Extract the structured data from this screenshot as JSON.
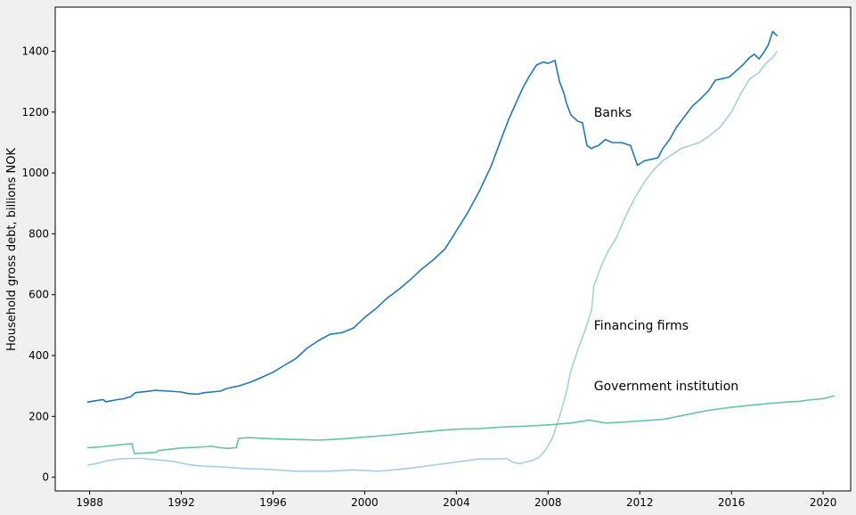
{
  "chart_data": {
    "type": "line",
    "title": "",
    "xlabel": "",
    "ylabel": "Household gross debt, billions NOK",
    "xlim": [
      1986.5,
      2021.2
    ],
    "ylim": [
      -45,
      1545
    ],
    "x_ticks": [
      1988,
      1992,
      1996,
      2000,
      2004,
      2008,
      2012,
      2016,
      2020
    ],
    "x_tick_labels": [
      "1988",
      "1992",
      "1996",
      "2000",
      "2004",
      "2008",
      "2012",
      "2016",
      "2020"
    ],
    "y_ticks": [
      0,
      200,
      400,
      600,
      800,
      1000,
      1200,
      1400
    ],
    "y_tick_labels": [
      "0",
      "200",
      "400",
      "600",
      "800",
      "1000",
      "1200",
      "1400"
    ],
    "grid": false,
    "legend": "none",
    "annotations": [
      {
        "text": "Banks",
        "x": 2010.0,
        "y": 1200
      },
      {
        "text": "Financing firms",
        "x": 2010.0,
        "y": 500
      },
      {
        "text": "Government institution",
        "x": 2010.0,
        "y": 300
      }
    ],
    "series": [
      {
        "color": "#1f78b4",
        "x": [
          1987.9,
          1988.3,
          1988.6,
          1988.7,
          1989.0,
          1989.2,
          1989.5,
          1989.8,
          1990.0,
          1990.5,
          1990.9,
          1991.0,
          1991.5,
          1992.0,
          1992.3,
          1992.7,
          1993.0,
          1993.3,
          1993.7,
          1994.0,
          1994.5,
          1995.0,
          1995.5,
          1996.0,
          1996.5,
          1997.0,
          1997.5,
          1998.0,
          1998.5,
          1999.0,
          1999.5,
          2000.0,
          2000.5,
          2001.0,
          2001.5,
          2002.0,
          2002.5,
          2003.0,
          2003.5,
          2004.0,
          2004.5,
          2005.0,
          2005.5,
          2005.8,
          2006.0,
          2006.3,
          2006.6,
          2006.9,
          2007.2,
          2007.5,
          2007.8,
          2008.0,
          2008.3,
          2008.5,
          2008.7,
          2008.8,
          2009.0,
          2009.3,
          2009.5,
          2009.7,
          2009.9,
          2010.0,
          2010.2,
          2010.5,
          2010.8,
          2011.2,
          2011.6,
          2011.9,
          2012.0,
          2012.2,
          2012.5,
          2012.8,
          2013.0,
          2013.3,
          2013.6,
          2014.0,
          2014.3,
          2014.6,
          2015.0,
          2015.3,
          2015.6,
          2015.9,
          2016.2,
          2016.5,
          2016.8,
          2017.0,
          2017.2,
          2017.4,
          2017.6,
          2017.8,
          2018.0
        ],
        "y": [
          247,
          252,
          255,
          248,
          252,
          255,
          258,
          265,
          278,
          282,
          286,
          285,
          283,
          280,
          275,
          273,
          278,
          280,
          283,
          292,
          300,
          312,
          328,
          345,
          368,
          390,
          425,
          450,
          470,
          475,
          490,
          525,
          555,
          590,
          618,
          650,
          685,
          715,
          750,
          810,
          870,
          940,
          1020,
          1080,
          1120,
          1180,
          1230,
          1280,
          1320,
          1355,
          1365,
          1360,
          1370,
          1300,
          1260,
          1230,
          1190,
          1170,
          1165,
          1090,
          1080,
          1085,
          1090,
          1110,
          1100,
          1100,
          1090,
          1025,
          1030,
          1040,
          1045,
          1050,
          1080,
          1110,
          1150,
          1190,
          1220,
          1240,
          1270,
          1305,
          1310,
          1315,
          1335,
          1355,
          1380,
          1390,
          1375,
          1395,
          1420,
          1465,
          1450
        ]
      },
      {
        "color": "#a6cee3",
        "x": [
          1987.9,
          1988.3,
          1988.8,
          1989.3,
          1989.8,
          1990.3,
          1990.8,
          1991.3,
          1991.8,
          1992.3,
          1992.7,
          1993.0,
          1993.5,
          1994.0,
          1994.5,
          1995.0,
          1995.5,
          1996.0,
          1996.5,
          1997.0,
          1997.5,
          1998.0,
          1998.5,
          1999.0,
          1999.5,
          2000.0,
          2000.5,
          2001.0,
          2001.5,
          2002.0,
          2002.5,
          2003.0,
          2003.5,
          2004.0,
          2004.5,
          2005.0,
          2005.5,
          2005.8,
          2006.0,
          2006.2,
          2006.5,
          2006.8,
          2007.0,
          2007.3,
          2007.6,
          2007.9,
          2008.2,
          2008.5,
          2008.8,
          2009.0,
          2009.3,
          2009.6,
          2009.9,
          2010.0,
          2010.3,
          2010.6,
          2011.0,
          2011.4,
          2011.8,
          2012.2,
          2012.6,
          2013.0,
          2013.4,
          2013.8,
          2014.2,
          2014.6,
          2015.0,
          2015.5,
          2016.0,
          2016.4,
          2016.8,
          2017.2,
          2017.5,
          2017.8,
          2018.0
        ],
        "y": [
          40,
          45,
          55,
          60,
          62,
          62,
          58,
          55,
          50,
          42,
          38,
          36,
          35,
          33,
          30,
          28,
          27,
          25,
          22,
          20,
          20,
          20,
          20,
          22,
          24,
          22,
          20,
          22,
          26,
          30,
          35,
          40,
          45,
          50,
          55,
          60,
          60,
          60,
          60,
          62,
          48,
          45,
          50,
          55,
          65,
          90,
          130,
          200,
          280,
          350,
          420,
          480,
          550,
          630,
          690,
          740,
          790,
          860,
          920,
          970,
          1010,
          1040,
          1060,
          1080,
          1090,
          1100,
          1120,
          1150,
          1200,
          1260,
          1310,
          1330,
          1360,
          1380,
          1400
        ]
      },
      {
        "color": "#66c2a5",
        "x": [
          1987.9,
          1988.5,
          1989.0,
          1989.5,
          1989.85,
          1989.95,
          1990.5,
          1990.9,
          1991.0,
          1991.5,
          1992.0,
          1992.5,
          1993.0,
          1993.3,
          1993.7,
          1994.0,
          1994.4,
          1994.5,
          1995.0,
          1995.5,
          1996.0,
          1996.5,
          1997.0,
          1997.5,
          1998.0,
          1998.5,
          1999.0,
          1999.5,
          2000.0,
          2001.0,
          2002.0,
          2003.0,
          2004.0,
          2005.0,
          2006.0,
          2007.0,
          2008.0,
          2009.0,
          2009.8,
          2010.0,
          2010.5,
          2011.0,
          2012.0,
          2013.0,
          2014.0,
          2015.0,
          2016.0,
          2017.0,
          2018.0,
          2019.0,
          2019.5,
          2020.0,
          2020.5
        ],
        "y": [
          97,
          100,
          104,
          108,
          110,
          78,
          80,
          82,
          88,
          92,
          96,
          98,
          100,
          102,
          97,
          95,
          97,
          128,
          130,
          128,
          126,
          125,
          124,
          123,
          122,
          124,
          126,
          129,
          132,
          138,
          145,
          152,
          158,
          160,
          165,
          168,
          172,
          178,
          188,
          185,
          178,
          180,
          185,
          190,
          205,
          220,
          230,
          238,
          245,
          250,
          255,
          258,
          268
        ]
      }
    ]
  }
}
